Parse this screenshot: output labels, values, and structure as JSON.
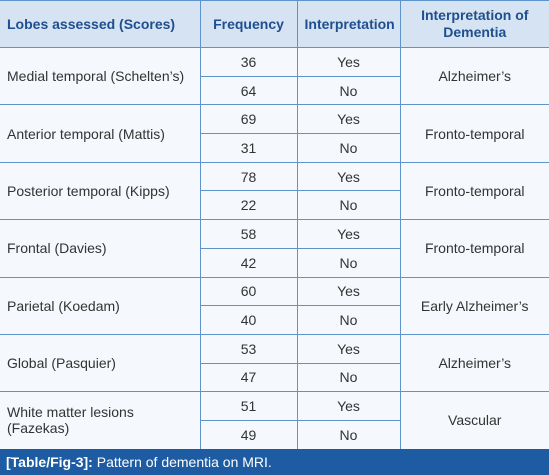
{
  "table": {
    "headers": [
      "Lobes assessed (Scores)",
      "Frequency",
      "Interpretation",
      "Interpretation of Dementia"
    ],
    "groups": [
      {
        "lobe": "Medial temporal (Schelten’s)",
        "rows": [
          [
            36,
            "Yes"
          ],
          [
            64,
            "No"
          ]
        ],
        "dementia": "Alzheimer’s"
      },
      {
        "lobe": "Anterior temporal (Mattis)",
        "rows": [
          [
            69,
            "Yes"
          ],
          [
            31,
            "No"
          ]
        ],
        "dementia": "Fronto-temporal"
      },
      {
        "lobe": "Posterior temporal (Kipps)",
        "rows": [
          [
            78,
            "Yes"
          ],
          [
            22,
            "No"
          ]
        ],
        "dementia": "Fronto-temporal"
      },
      {
        "lobe": "Frontal (Davies)",
        "rows": [
          [
            58,
            "Yes"
          ],
          [
            42,
            "No"
          ]
        ],
        "dementia": "Fronto-temporal"
      },
      {
        "lobe": "Parietal (Koedam)",
        "rows": [
          [
            60,
            "Yes"
          ],
          [
            40,
            "No"
          ]
        ],
        "dementia": "Early Alzheimer’s"
      },
      {
        "lobe": "Global (Pasquier)",
        "rows": [
          [
            53,
            "Yes"
          ],
          [
            47,
            "No"
          ]
        ],
        "dementia": "Alzheimer’s"
      },
      {
        "lobe": "White matter lesions (Fazekas)",
        "rows": [
          [
            51,
            "Yes"
          ],
          [
            49,
            "No"
          ]
        ],
        "dementia": "Vascular"
      }
    ]
  },
  "caption": {
    "label": "[Table/Fig-3]:",
    "text": "Pattern of dementia on MRI."
  }
}
